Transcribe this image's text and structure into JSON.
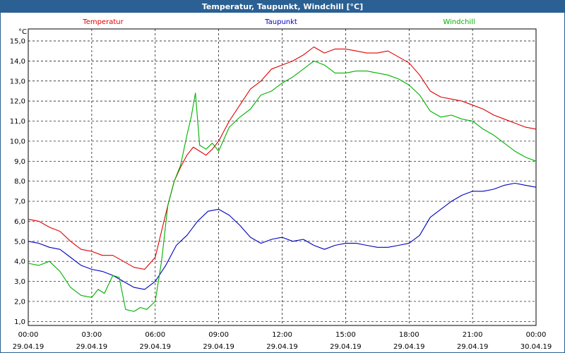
{
  "window": {
    "title": "Temperatur, Taupunkt, Windchill [°C]"
  },
  "chart_data": {
    "type": "line",
    "title": "Temperatur, Taupunkt, Windchill [°C]",
    "ylabel": "°C",
    "ylim": [
      0.8,
      15.6
    ],
    "y_ticks": [
      "1,0",
      "2,0",
      "3,0",
      "4,0",
      "5,0",
      "6,0",
      "7,0",
      "8,0",
      "9,0",
      "10,0",
      "11,0",
      "12,0",
      "13,0",
      "14,0",
      "15,0"
    ],
    "x_range_hours": [
      0,
      24
    ],
    "x_ticks": [
      {
        "time": "00:00",
        "date": "29.04.19"
      },
      {
        "time": "03:00",
        "date": "29.04.19"
      },
      {
        "time": "06:00",
        "date": "29.04.19"
      },
      {
        "time": "09:00",
        "date": "29.04.19"
      },
      {
        "time": "12:00",
        "date": "29.04.19"
      },
      {
        "time": "15:00",
        "date": "29.04.19"
      },
      {
        "time": "18:00",
        "date": "29.04.19"
      },
      {
        "time": "21:00",
        "date": "29.04.19"
      },
      {
        "time": "00:00",
        "date": "30.04.19"
      }
    ],
    "grid": true,
    "legend_placement": "top",
    "series": [
      {
        "name": "Temperatur",
        "color": "#e00000",
        "x": [
          0,
          0.5,
          1,
          1.5,
          2,
          2.5,
          3,
          3.5,
          4,
          4.5,
          5,
          5.5,
          6,
          6.3,
          6.6,
          6.9,
          7.2,
          7.5,
          7.8,
          8.1,
          8.4,
          8.7,
          9,
          9.5,
          10,
          10.5,
          11,
          11.5,
          12,
          12.5,
          13,
          13.5,
          14,
          14.5,
          15,
          15.5,
          16,
          16.5,
          17,
          17.5,
          18,
          18.5,
          19,
          19.5,
          20,
          20.5,
          21,
          21.5,
          22,
          22.5,
          23,
          23.5,
          24
        ],
        "values": [
          6.1,
          6.0,
          5.7,
          5.5,
          5.0,
          4.6,
          4.5,
          4.3,
          4.3,
          4.0,
          3.7,
          3.6,
          4.2,
          5.5,
          6.8,
          8.0,
          8.7,
          9.3,
          9.7,
          9.5,
          9.3,
          9.6,
          10.0,
          11.0,
          11.8,
          12.6,
          13.0,
          13.6,
          13.8,
          14.0,
          14.3,
          14.7,
          14.4,
          14.6,
          14.6,
          14.5,
          14.4,
          14.4,
          14.5,
          14.2,
          13.9,
          13.3,
          12.5,
          12.2,
          12.1,
          12.0,
          11.8,
          11.6,
          11.3,
          11.1,
          10.9,
          10.7,
          10.6
        ]
      },
      {
        "name": "Taupunkt",
        "color": "#0000c0",
        "x": [
          0,
          0.5,
          1,
          1.5,
          2,
          2.5,
          3,
          3.5,
          4,
          4.5,
          5,
          5.5,
          6,
          6.5,
          7,
          7.5,
          8,
          8.5,
          9,
          9.5,
          10,
          10.5,
          11,
          11.5,
          12,
          12.5,
          13,
          13.5,
          14,
          14.5,
          15,
          15.5,
          16,
          16.5,
          17,
          17.5,
          18,
          18.5,
          19,
          19.5,
          20,
          20.5,
          21,
          21.5,
          22,
          22.5,
          23,
          23.5,
          24
        ],
        "values": [
          5.0,
          4.9,
          4.7,
          4.6,
          4.2,
          3.8,
          3.6,
          3.5,
          3.3,
          3.0,
          2.7,
          2.6,
          3.0,
          3.8,
          4.8,
          5.3,
          6.0,
          6.5,
          6.6,
          6.3,
          5.8,
          5.2,
          4.9,
          5.1,
          5.2,
          5.0,
          5.1,
          4.8,
          4.6,
          4.8,
          4.9,
          4.9,
          4.8,
          4.7,
          4.7,
          4.8,
          4.9,
          5.3,
          6.2,
          6.6,
          7.0,
          7.3,
          7.5,
          7.5,
          7.6,
          7.8,
          7.9,
          7.8,
          7.7
        ]
      },
      {
        "name": "Windchill",
        "color": "#00b000",
        "x": [
          0,
          0.5,
          1,
          1.5,
          2,
          2.5,
          3,
          3.3,
          3.6,
          4,
          4.3,
          4.6,
          5,
          5.3,
          5.6,
          6,
          6.3,
          6.6,
          6.9,
          7.2,
          7.5,
          7.7,
          7.9,
          8.1,
          8.4,
          8.7,
          9,
          9.5,
          10,
          10.5,
          11,
          11.5,
          12,
          12.5,
          13,
          13.5,
          14,
          14.5,
          15,
          15.5,
          16,
          16.5,
          17,
          17.5,
          18,
          18.5,
          19,
          19.5,
          20,
          20.5,
          21,
          21.5,
          22,
          22.5,
          23,
          23.5,
          24
        ],
        "values": [
          3.9,
          3.8,
          4.0,
          3.5,
          2.7,
          2.3,
          2.2,
          2.6,
          2.4,
          3.3,
          3.2,
          1.6,
          1.5,
          1.7,
          1.6,
          2.0,
          4.0,
          6.8,
          8.0,
          8.8,
          10.3,
          11.2,
          12.4,
          9.8,
          9.6,
          9.9,
          9.5,
          10.7,
          11.2,
          11.6,
          12.3,
          12.5,
          12.9,
          13.2,
          13.6,
          14.0,
          13.8,
          13.4,
          13.4,
          13.5,
          13.5,
          13.4,
          13.3,
          13.1,
          12.8,
          12.3,
          11.5,
          11.2,
          11.3,
          11.1,
          11.0,
          10.6,
          10.3,
          9.9,
          9.5,
          9.2,
          9.0
        ]
      }
    ]
  }
}
